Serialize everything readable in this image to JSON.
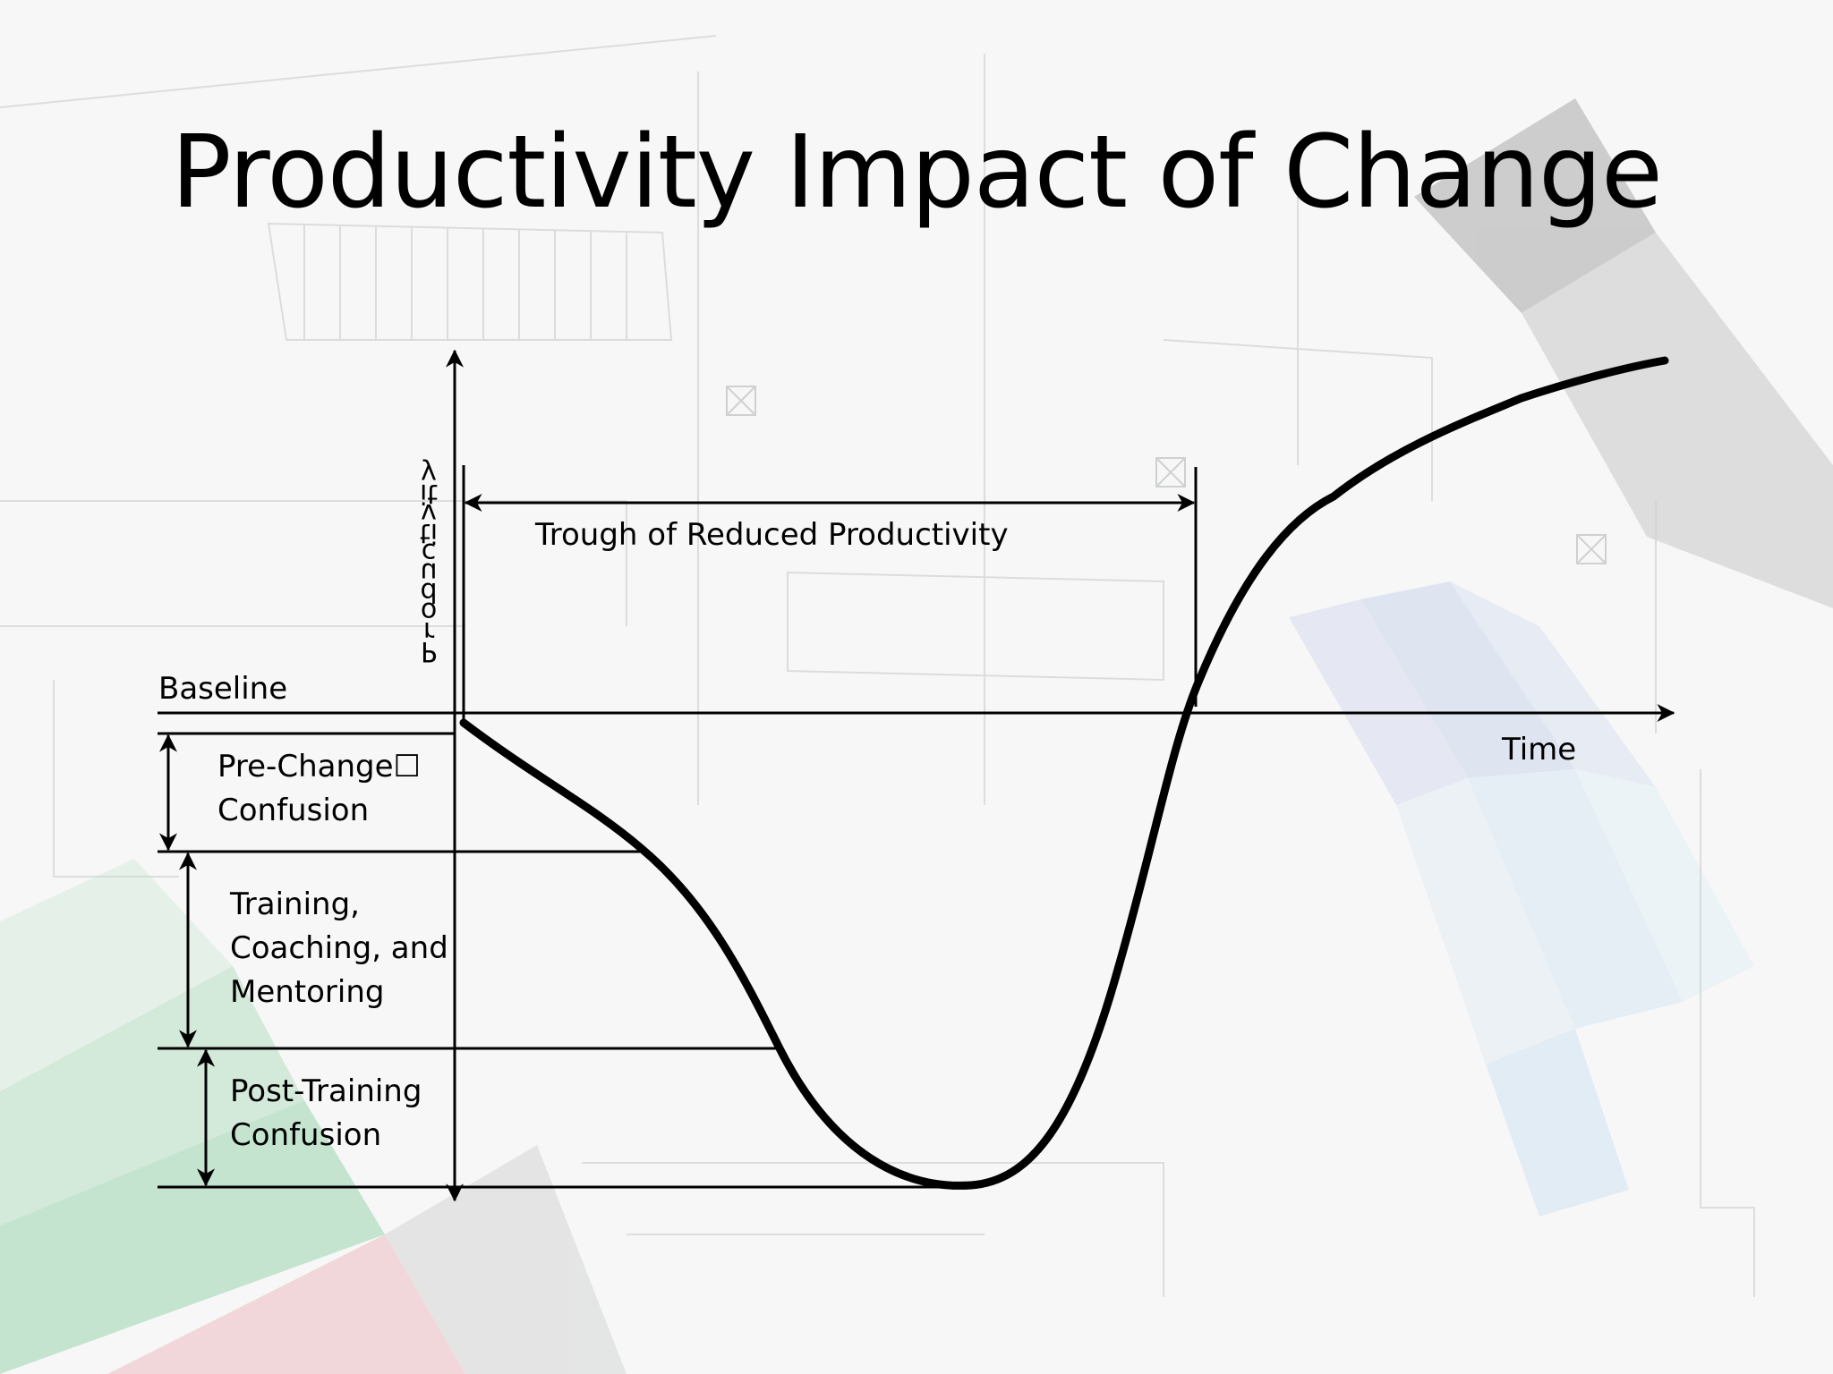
{
  "title": "Productivity Impact of Change",
  "axes": {
    "y_label": "Productivity",
    "x_label": "Time",
    "baseline_label": "Baseline"
  },
  "annotations": {
    "trough": "Trough of Reduced Productivity",
    "pre_change_line1": "Pre-Change",
    "pre_change_glyph": "☐",
    "pre_change_line2": "Confusion",
    "training_line1": "Training,",
    "training_line2": "Coaching, and",
    "training_line3": "Mentoring",
    "post_training_line1": "Post-Training",
    "post_training_line2": "Confusion"
  },
  "colors": {
    "ink": "#000000",
    "background": "#f3f4f4"
  }
}
